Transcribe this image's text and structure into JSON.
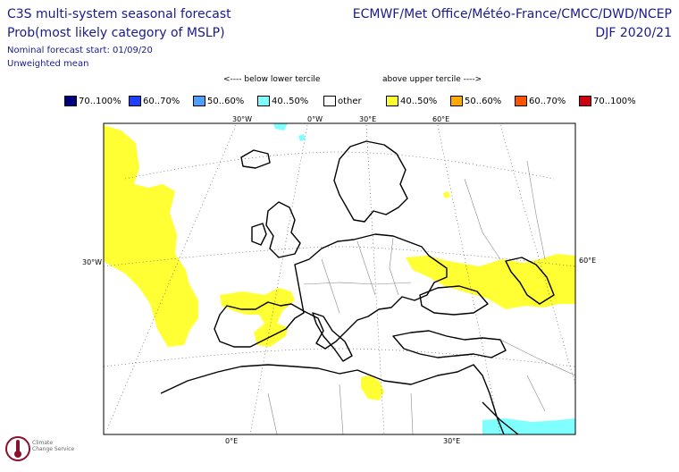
{
  "header": {
    "title_line1": "C3S multi-system seasonal forecast",
    "title_line2": "Prob(most likely category of MSLP)",
    "forecast_start": "Nominal forecast start: 01/09/20",
    "weighting": "Unweighted mean",
    "centres": "ECMWF/Met Office/Météo-France/CMCC/DWD/NCEP",
    "season": "DJF 2020/21"
  },
  "legend": {
    "below_label": "<---- below lower tercile",
    "above_label": "above upper tercile ---->",
    "items": [
      {
        "label": "70..100%",
        "color": "#00007f"
      },
      {
        "label": "60..70%",
        "color": "#1f3fff"
      },
      {
        "label": "50..60%",
        "color": "#4f9fff"
      },
      {
        "label": "40..50%",
        "color": "#7fffff"
      },
      {
        "label": "other",
        "color": "#ffffff"
      },
      {
        "label": "40..50%",
        "color": "#ffff33"
      },
      {
        "label": "50..60%",
        "color": "#ffaa00"
      },
      {
        "label": "60..70%",
        "color": "#ff5500"
      },
      {
        "label": "70..100%",
        "color": "#cc0011"
      }
    ]
  },
  "map": {
    "grid_labels": {
      "top_30w": "30°W",
      "top_0w": "0°W",
      "top_30e": "30°E",
      "top_60e": "60°E",
      "left_30w": "30°W",
      "right_60e": "60°E",
      "bottom_0e": "0°E",
      "bottom_30e": "30°E"
    },
    "regions": [
      {
        "name": "mid-atlantic",
        "category": "40..50% above upper tercile"
      },
      {
        "name": "iberia-france",
        "category": "40..50% above upper tercile"
      },
      {
        "name": "caspian-region",
        "category": "40..50% above upper tercile"
      },
      {
        "name": "arabia-south",
        "category": "40..50% below lower tercile"
      }
    ]
  },
  "logo": {
    "line1": "Climate",
    "line2": "Change Service"
  }
}
